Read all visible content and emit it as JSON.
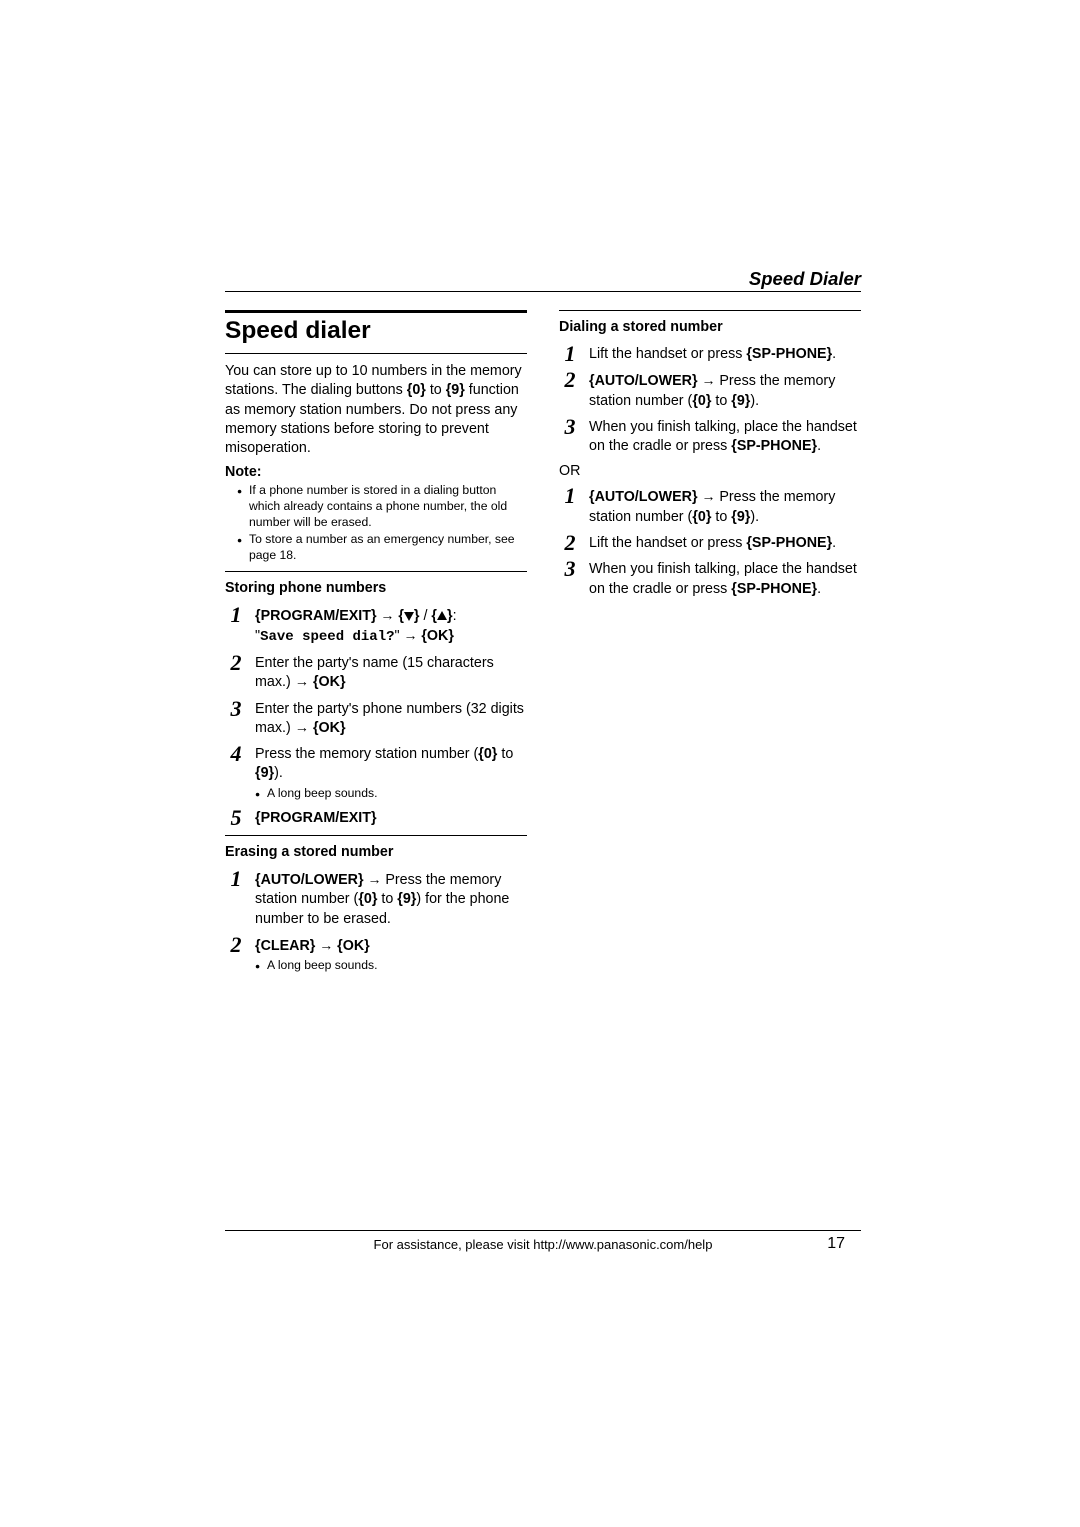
{
  "header": {
    "section_title": "Speed Dialer"
  },
  "left": {
    "heading": "Speed dialer",
    "intro_pre": "You can store up to 10 numbers in the memory stations. The dialing buttons ",
    "key0": "{0}",
    "intro_to": " to ",
    "key9": "{9}",
    "intro_post": " function as memory station numbers. Do not press any memory stations before storing to prevent misoperation.",
    "note_label": "Note:",
    "note1": "If a phone number is stored in a dialing button which already contains a phone number, the old number will be erased.",
    "note2": "To store a number as an emergency number, see page 18.",
    "sub1_heading": "Storing phone numbers",
    "s1_key1": "{PROGRAM/EXIT}",
    "s1_arrow": " → ",
    "s1_bracket_open": "{",
    "s1_bracket_close": "}",
    "s1_slash": " / ",
    "s1_colon": ":",
    "s1_mono": "Save speed dial?",
    "s1_quote_open": "\"",
    "s1_quote_close": "\"",
    "s1_ok": "{OK}",
    "s2_text": "Enter the party's name (15 characters max.) → ",
    "s2_ok": "{OK}",
    "s3_text": "Enter the party's phone numbers (32 digits max.) → ",
    "s3_ok": "{OK}",
    "s4_text_pre": "Press the memory station number (",
    "s4_key0": "{0}",
    "s4_to": " to ",
    "s4_key9": "{9}",
    "s4_text_post": ").",
    "s4_bullet": "A long beep sounds.",
    "s5_key": "{PROGRAM/EXIT}",
    "sub2_heading": "Erasing a stored number",
    "e1_key": "{AUTO/LOWER}",
    "e1_arrow": " → ",
    "e1_text_pre": "Press the memory station number (",
    "e1_key0": "{0}",
    "e1_to": " to ",
    "e1_key9": "{9}",
    "e1_text_post": ") for the phone number to be erased.",
    "e2_key1": "{CLEAR}",
    "e2_arrow": " → ",
    "e2_key2": "{OK}",
    "e2_bullet": "A long beep sounds."
  },
  "right": {
    "sub_heading": "Dialing a stored number",
    "a1_text": "Lift the handset or press ",
    "a1_key": "{SP-PHONE}",
    "a1_dot": ".",
    "a2_key": "{AUTO/LOWER}",
    "a2_arrow": " → ",
    "a2_text_pre": "Press the memory station number (",
    "a2_key0": "{0}",
    "a2_to": " to ",
    "a2_key9": "{9}",
    "a2_text_post": ").",
    "a3_text": "When you finish talking, place the handset on the cradle or press ",
    "a3_key": "{SP-PHONE}",
    "a3_dot": ".",
    "or_text": "OR",
    "b1_key": "{AUTO/LOWER}",
    "b1_arrow": " → ",
    "b1_text_pre": "Press the memory station number (",
    "b1_key0": "{0}",
    "b1_to": " to ",
    "b1_key9": "{9}",
    "b1_text_post": ").",
    "b2_text": "Lift the handset or press ",
    "b2_key": "{SP-PHONE}",
    "b2_dot": ".",
    "b3_text": "When you finish talking, place the handset on the cradle or press ",
    "b3_key": "{SP-PHONE}",
    "b3_dot": "."
  },
  "footer": {
    "text": "For assistance, please visit http://www.panasonic.com/help",
    "page": "17"
  }
}
